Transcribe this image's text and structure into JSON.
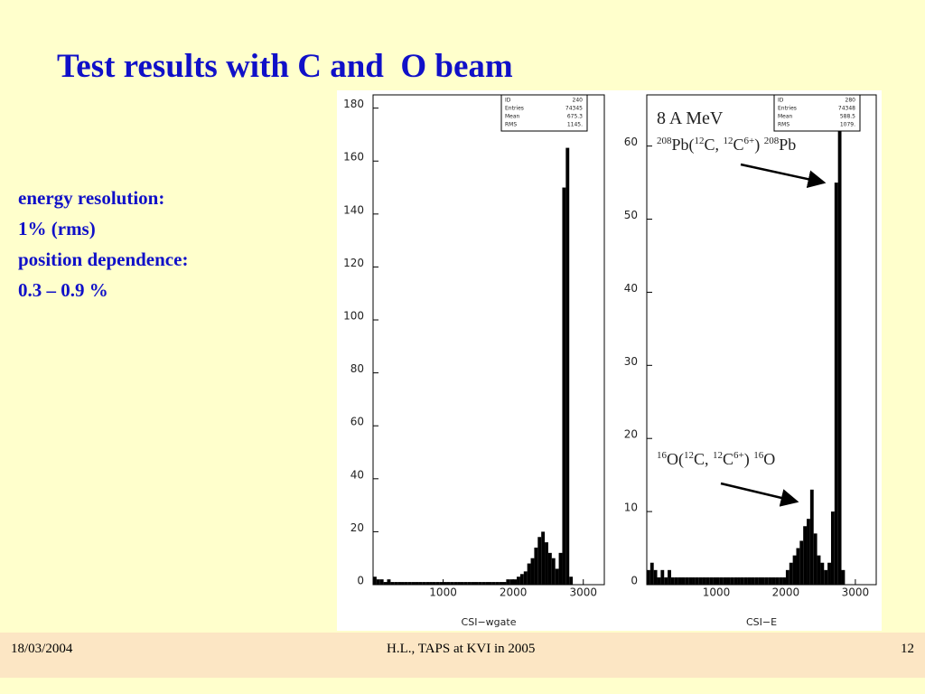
{
  "title": "Test results with C and  O beam",
  "notes": [
    "energy resolution:",
    "1% (rms)",
    "position dependence:",
    "0.3 – 0.9 %"
  ],
  "footer": {
    "date": "18/03/2004",
    "center": "H.L.,  TAPS at KVI in 2005",
    "page": "12"
  },
  "chart_data": [
    {
      "type": "histogram",
      "xlabel": "CSI−wgate",
      "stats": [
        [
          "ID",
          "240"
        ],
        [
          "Entries",
          "74345"
        ],
        [
          "Mean",
          "675.3"
        ],
        [
          "RMS",
          "1145."
        ]
      ],
      "bins": [
        0,
        50,
        100,
        150,
        200,
        250,
        300,
        350,
        400,
        450,
        500,
        550,
        600,
        650,
        700,
        750,
        800,
        850,
        900,
        950,
        1000,
        1050,
        1100,
        1150,
        1200,
        1250,
        1300,
        1350,
        1400,
        1450,
        1500,
        1550,
        1600,
        1650,
        1700,
        1750,
        1800,
        1850,
        1900,
        1950,
        2000,
        2050,
        2100,
        2150,
        2200,
        2250,
        2300,
        2350,
        2400,
        2450,
        2500,
        2550,
        2600,
        2650,
        2700,
        2750,
        2800,
        2850,
        2900,
        2950,
        3000,
        3050,
        3100,
        3150,
        3200,
        3250,
        3300
      ],
      "counts": [
        3,
        2,
        2,
        1,
        2,
        1,
        1,
        1,
        1,
        1,
        1,
        1,
        1,
        1,
        1,
        1,
        1,
        1,
        1,
        1,
        1,
        1,
        1,
        1,
        1,
        1,
        1,
        1,
        1,
        1,
        1,
        1,
        1,
        1,
        1,
        1,
        1,
        1,
        2,
        2,
        2,
        3,
        4,
        5,
        8,
        10,
        14,
        18,
        20,
        16,
        12,
        10,
        6,
        12,
        150,
        165,
        3,
        0,
        0,
        0,
        0,
        0,
        0,
        0,
        0,
        0
      ],
      "color": "#000000",
      "xlim": [
        0,
        3300
      ],
      "ylim": [
        0,
        185
      ],
      "xticks": [
        1000,
        2000,
        3000
      ],
      "yticks": [
        0,
        20,
        40,
        60,
        80,
        100,
        120,
        140,
        160,
        180
      ]
    },
    {
      "type": "histogram",
      "xlabel": "CSI−E",
      "stats": [
        [
          "ID",
          "280"
        ],
        [
          "Entries",
          "74348"
        ],
        [
          "Mean",
          "588.5"
        ],
        [
          "RMS",
          "1079."
        ]
      ],
      "bins": [
        0,
        50,
        100,
        150,
        200,
        250,
        300,
        350,
        400,
        450,
        500,
        550,
        600,
        650,
        700,
        750,
        800,
        850,
        900,
        950,
        1000,
        1050,
        1100,
        1150,
        1200,
        1250,
        1300,
        1350,
        1400,
        1450,
        1500,
        1550,
        1600,
        1650,
        1700,
        1750,
        1800,
        1850,
        1900,
        1950,
        2000,
        2050,
        2100,
        2150,
        2200,
        2250,
        2300,
        2350,
        2400,
        2450,
        2500,
        2550,
        2600,
        2650,
        2700,
        2750,
        2800,
        2850,
        2900,
        2950,
        3000,
        3050,
        3100,
        3150,
        3200,
        3250,
        3300
      ],
      "counts": [
        2,
        3,
        2,
        1,
        2,
        1,
        2,
        1,
        1,
        1,
        1,
        1,
        1,
        1,
        1,
        1,
        1,
        1,
        1,
        1,
        1,
        1,
        1,
        1,
        1,
        1,
        1,
        1,
        1,
        1,
        1,
        1,
        1,
        1,
        1,
        1,
        1,
        1,
        1,
        1,
        2,
        3,
        4,
        5,
        6,
        8,
        9,
        13,
        7,
        4,
        3,
        2,
        3,
        10,
        55,
        62,
        2,
        0,
        0,
        0,
        0,
        0,
        0,
        0,
        0,
        0
      ],
      "color": "#000000",
      "xlim": [
        0,
        3300
      ],
      "ylim": [
        0,
        67
      ],
      "xticks": [
        1000,
        2000,
        3000
      ],
      "yticks": [
        0,
        10,
        20,
        30,
        40,
        50,
        60
      ],
      "annotations": [
        [
          {
            "text": "8 A MeV"
          }
        ],
        [
          {
            "sup": "208"
          },
          {
            "text": "Pb("
          },
          {
            "sup": "12"
          },
          {
            "text": "C, "
          },
          {
            "sup": "12"
          },
          {
            "text": "C"
          },
          {
            "sup": "6+"
          },
          {
            "text": ") "
          },
          {
            "sup": "208"
          },
          {
            "text": "Pb"
          }
        ],
        [
          {
            "sup": "16"
          },
          {
            "text": "O("
          },
          {
            "sup": "12"
          },
          {
            "text": "C, "
          },
          {
            "sup": "12"
          },
          {
            "text": "C"
          },
          {
            "sup": "6+"
          },
          {
            "text": ") "
          },
          {
            "sup": "16"
          },
          {
            "text": "O"
          }
        ]
      ]
    }
  ]
}
